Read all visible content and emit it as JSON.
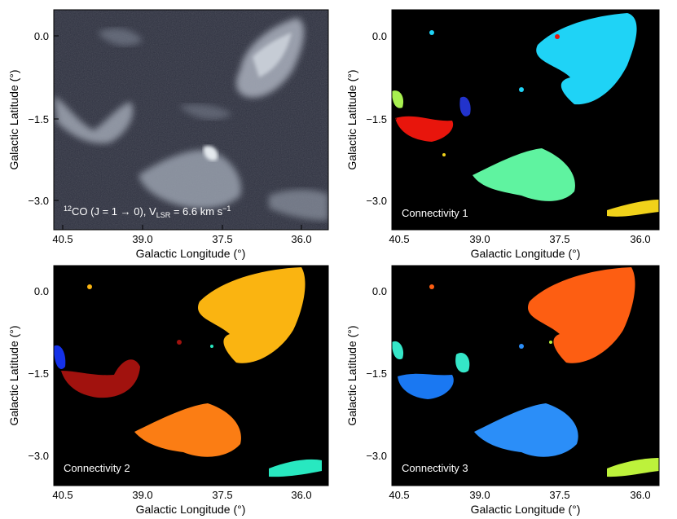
{
  "axes": {
    "xlabel": "Galactic Longitude (°)",
    "ylabel": "Galactic Latitude (°)",
    "xticks": [
      "40.5",
      "39.0",
      "37.5",
      "36.0"
    ],
    "yticks": [
      "0.0",
      "−1.5",
      "−3.0"
    ]
  },
  "panels": [
    {
      "id": "co-map",
      "caption_pre": "12",
      "caption_main": "CO (J = 1 → 0), V",
      "caption_sub": "LSR",
      "caption_post": " = 6.6 km s",
      "caption_sup": "−1",
      "style": "grayscale"
    },
    {
      "id": "connectivity-1",
      "caption": "Connectivity 1",
      "style": "color"
    },
    {
      "id": "connectivity-2",
      "caption": "Connectivity 2",
      "style": "color"
    },
    {
      "id": "connectivity-3",
      "caption": "Connectivity 3",
      "style": "color"
    }
  ],
  "colors": {
    "background": "#000000",
    "c1": [
      "#1fd3f6",
      "#e8150c",
      "#5ff3a0",
      "#2233cc",
      "#f0d21a",
      "#a8f050"
    ],
    "c2": [
      "#fab411",
      "#a1120e",
      "#fb7d14",
      "#1431e8",
      "#28e8c0"
    ],
    "c3": [
      "#fd5e12",
      "#1a78f2",
      "#35e6c8",
      "#2b8ef8",
      "#bdf23b"
    ]
  }
}
